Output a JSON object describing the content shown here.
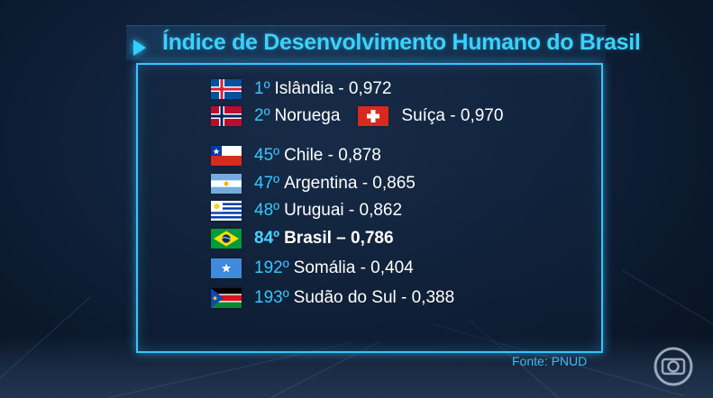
{
  "title": "Índice de Desenvolvimento Humano do Brasil",
  "rows": [
    {
      "flag": "iceland-flag",
      "rank": "1º",
      "text": "Islândia - 0,972"
    },
    {
      "flag": "norway-flag",
      "rank": "2º",
      "text": "Noruega",
      "extra_flag": "switzerland-flag",
      "extra_text": "Suíça - 0,970"
    },
    {
      "flag": "chile-flag",
      "rank": "45º",
      "text": "Chile - 0,878"
    },
    {
      "flag": "argentina-flag",
      "rank": "47º",
      "text": "Argentina - 0,865"
    },
    {
      "flag": "uruguay-flag",
      "rank": "48º",
      "text": "Uruguai - 0,862"
    },
    {
      "flag": "brazil-flag",
      "rank": "84º",
      "text": "Brasil – 0,786"
    },
    {
      "flag": "somalia-flag",
      "rank": "192º",
      "text": "Somália - 0,404"
    },
    {
      "flag": "south-sudan-flag",
      "rank": "193º",
      "text": "Sudão do Sul - 0,388"
    }
  ],
  "source": "Fonte: PNUD",
  "colors": {
    "accent": "#38c4ff",
    "text": "#ffffff",
    "background": "#0f2038"
  }
}
